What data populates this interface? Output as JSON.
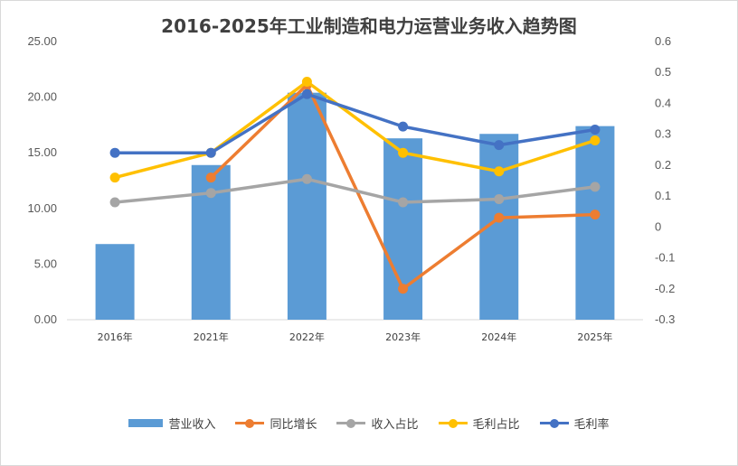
{
  "chart_data": {
    "type": "bar",
    "title": "2016-2025年工业制造和电力运营业务收入趋势图",
    "categories": [
      "2016年",
      "2021年",
      "2022年",
      "2023年",
      "2024年",
      "2025年"
    ],
    "left_axis": {
      "ylim": [
        0,
        25
      ],
      "ticks": [
        "0.00",
        "5.00",
        "10.00",
        "15.00",
        "20.00",
        "25.00"
      ],
      "tick_values": [
        0,
        5,
        10,
        15,
        20,
        25
      ]
    },
    "right_axis": {
      "ylim": [
        -0.3,
        0.6
      ],
      "ticks": [
        "-0.3",
        "-0.2",
        "-0.1",
        "0",
        "0.1",
        "0.2",
        "0.3",
        "0.4",
        "0.5",
        "0.6"
      ],
      "tick_values": [
        -0.3,
        -0.2,
        -0.1,
        0,
        0.1,
        0.2,
        0.3,
        0.4,
        0.5,
        0.6
      ]
    },
    "grid": false,
    "legend_position": "bottom",
    "series": [
      {
        "name": "营业收入",
        "type": "bar",
        "axis": "left",
        "color": "#5b9bd5",
        "values": [
          6.8,
          13.9,
          20.4,
          16.3,
          16.7,
          17.4
        ]
      },
      {
        "name": "同比增长",
        "type": "line",
        "axis": "right",
        "color": "#ed7d31",
        "values": [
          null,
          0.16,
          0.46,
          -0.2,
          0.03,
          0.04
        ]
      },
      {
        "name": "收入占比",
        "type": "line",
        "axis": "right",
        "color": "#a5a5a5",
        "values": [
          0.08,
          0.11,
          0.155,
          0.08,
          0.09,
          0.13
        ]
      },
      {
        "name": "毛利占比",
        "type": "line",
        "axis": "right",
        "color": "#ffc000",
        "values": [
          0.16,
          0.24,
          0.47,
          0.24,
          0.18,
          0.28
        ]
      },
      {
        "name": "毛利率",
        "type": "line",
        "axis": "right",
        "color": "#4472c4",
        "values": [
          0.24,
          0.24,
          0.43,
          0.325,
          0.265,
          0.315
        ]
      }
    ]
  }
}
